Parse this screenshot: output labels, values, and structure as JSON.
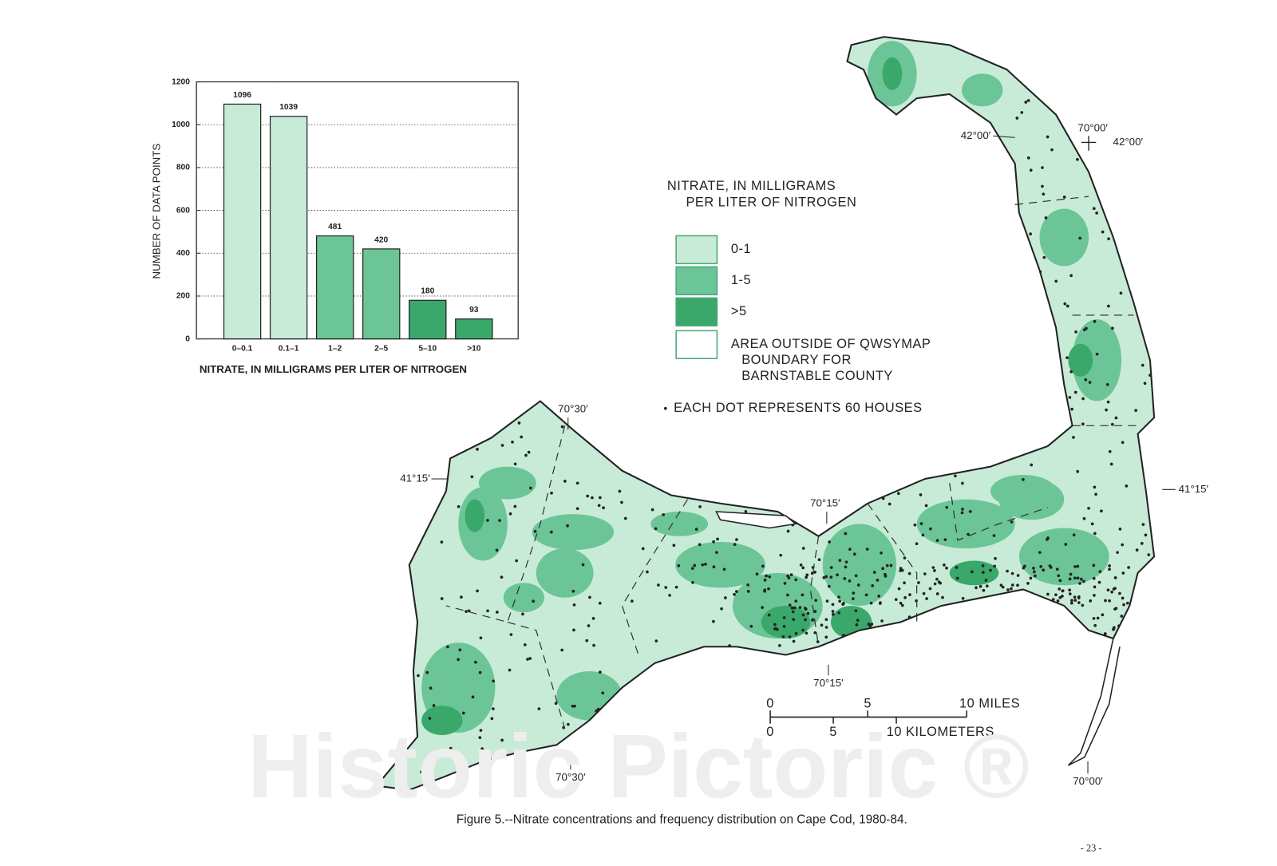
{
  "chart_data": {
    "type": "bar",
    "categories": [
      "0–0.1",
      "0.1–1",
      "1–2",
      "2–5",
      "5–10",
      ">10"
    ],
    "values": [
      1096,
      1039,
      481,
      420,
      180,
      93
    ],
    "colors": [
      "#c8ebd8",
      "#c8ebd8",
      "#6cc596",
      "#6cc596",
      "#3aa86a",
      "#3aa86a"
    ],
    "ylim": [
      0,
      1200
    ],
    "yticks": [
      0,
      200,
      400,
      600,
      800,
      1000,
      1200
    ],
    "ylabel": "NUMBER OF DATA POINTS",
    "xlabel": "NITRATE, IN MILLIGRAMS PER LITER OF NITROGEN",
    "grid": true
  },
  "map": {
    "legend": {
      "title": [
        "NITRATE, IN MILLIGRAMS",
        "PER LITER OF NITROGEN"
      ],
      "items": [
        {
          "label": [
            "0-1"
          ],
          "color": "#c8ebd8"
        },
        {
          "label": [
            "1-5"
          ],
          "color": "#6cc596"
        },
        {
          "label": [
            ">5"
          ],
          "color": "#3aa86a"
        },
        {
          "label": [
            "AREA OUTSIDE OF QWSYMAP",
            "BOUNDARY FOR",
            "BARNSTABLE COUNTY"
          ],
          "color": "#ffffff"
        }
      ],
      "dot_note": "EACH DOT REPRESENTS 60 HOUSES"
    },
    "coordinates": [
      "42°00′",
      "70°00′",
      "42°00′",
      "70°30′",
      "41°15′",
      "70°15′",
      "41°15′",
      "70°15′",
      "70°30′",
      "70°00′"
    ],
    "scale": {
      "miles": [
        "0",
        "5",
        "10 MILES"
      ],
      "kilometers": [
        "0",
        "5",
        "10 KILOMETERS"
      ]
    },
    "caption": "Figure 5.--Nitrate concentrations and frequency distribution on Cape Cod, 1980-84.",
    "page_number": "- 23 -",
    "watermark": "Historic Pictoric ®"
  }
}
